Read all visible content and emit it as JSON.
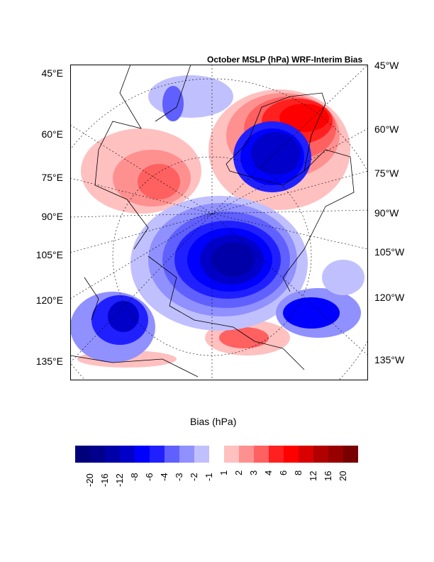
{
  "title": "October MSLP (hPa) WRF-Interim Bias",
  "left_labels": [
    "45°E",
    "60°E",
    "75°E",
    "90°E",
    "105°E",
    "120°E",
    "135°E"
  ],
  "right_labels": [
    "45°W",
    "60°W",
    "75°W",
    "90°W",
    "105°W",
    "120°W",
    "135°W"
  ],
  "colorbar": {
    "title": "Bias (hPa)",
    "ticks": [
      "-20",
      "-16",
      "-12",
      "-8",
      "-6",
      "-4",
      "-3",
      "-2",
      "-1",
      "1",
      "2",
      "3",
      "4",
      "6",
      "8",
      "12",
      "16",
      "20"
    ],
    "colors": [
      "#00007a",
      "#00008c",
      "#0000a8",
      "#0000c8",
      "#0000ff",
      "#2020ff",
      "#6060ff",
      "#9090ff",
      "#c0c0ff",
      "#ffffff",
      "#ffc0c0",
      "#ff9090",
      "#ff6060",
      "#ff2020",
      "#ff0000",
      "#d80000",
      "#b00000",
      "#980000",
      "#780000"
    ]
  }
}
